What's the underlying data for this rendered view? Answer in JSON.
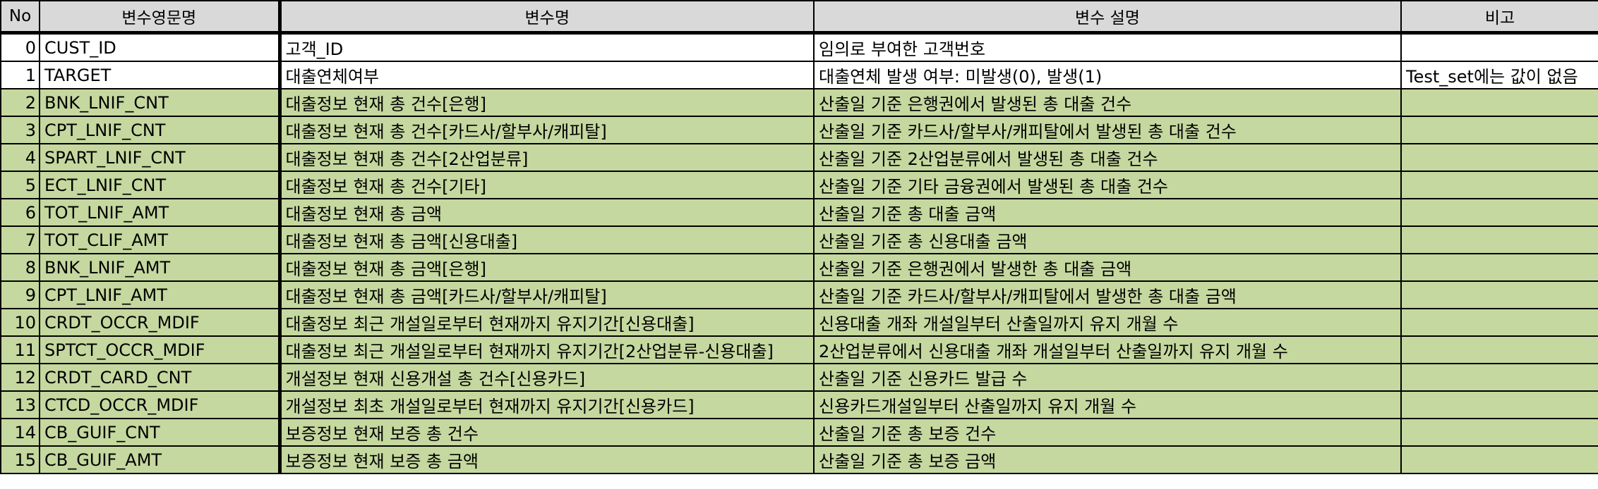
{
  "headers": [
    "No",
    "변수영문명",
    "변수명",
    "변수 설명",
    "비고"
  ],
  "rows": [
    {
      "no": "0",
      "eng": "CUST_ID",
      "name": "고객_ID",
      "desc": "임의로 부여한 고객번호",
      "note": "",
      "style": "white"
    },
    {
      "no": "1",
      "eng": "TARGET",
      "name": "대출연체여부",
      "desc": "대출연체 발생 여부: 미발생(0), 발생(1)",
      "note": "Test_set에는 값이 없음",
      "style": "white"
    },
    {
      "no": "2",
      "eng": "BNK_LNIF_CNT",
      "name": "대출정보 현재 총 건수[은행]",
      "desc": "산출일 기준 은행권에서 발생된 총 대출 건수",
      "note": "",
      "style": "green"
    },
    {
      "no": "3",
      "eng": "CPT_LNIF_CNT",
      "name": "대출정보 현재 총 건수[카드사/할부사/캐피탈]",
      "desc": "산출일 기준 카드사/할부사/캐피탈에서 발생된 총 대출 건수",
      "note": "",
      "style": "green"
    },
    {
      "no": "4",
      "eng": "SPART_LNIF_CNT",
      "name": "대출정보 현재 총 건수[2산업분류]",
      "desc": "산출일 기준 2산업분류에서 발생된 총 대출 건수",
      "note": "",
      "style": "green"
    },
    {
      "no": "5",
      "eng": "ECT_LNIF_CNT",
      "name": "대출정보 현재 총 건수[기타]",
      "desc": "산출일 기준 기타 금융권에서 발생된 총 대출 건수",
      "note": "",
      "style": "green"
    },
    {
      "no": "6",
      "eng": "TOT_LNIF_AMT",
      "name": "대출정보 현재 총 금액",
      "desc": "산출일 기준 총 대출 금액",
      "note": "",
      "style": "green"
    },
    {
      "no": "7",
      "eng": "TOT_CLIF_AMT",
      "name": "대출정보 현재 총 금액[신용대출]",
      "desc": "산출일 기준 총 신용대출 금액",
      "note": "",
      "style": "green"
    },
    {
      "no": "8",
      "eng": "BNK_LNIF_AMT",
      "name": "대출정보 현재 총 금액[은행]",
      "desc": "산출일 기준 은행권에서 발생한 총 대출 금액",
      "note": "",
      "style": "green"
    },
    {
      "no": "9",
      "eng": "CPT_LNIF_AMT",
      "name": "대출정보 현재 총 금액[카드사/할부사/캐피탈]",
      "desc": "산출일 기준  카드사/할부사/캐피탈에서 발생한 총 대출 금액",
      "note": "",
      "style": "green"
    },
    {
      "no": "10",
      "eng": "CRDT_OCCR_MDIF",
      "name": "대출정보 최근 개설일로부터 현재까지 유지기간[신용대출]",
      "desc": "신용대출 개좌 개설일부터 산출일까지 유지 개월 수",
      "note": "",
      "style": "green"
    },
    {
      "no": "11",
      "eng": "SPTCT_OCCR_MDIF",
      "name": "대출정보 최근 개설일로부터 현재까지 유지기간[2산업분류-신용대출]",
      "desc": "2산업분류에서 신용대출 개좌 개설일부터 산출일까지 유지 개월 수",
      "note": "",
      "style": "green"
    },
    {
      "no": "12",
      "eng": "CRDT_CARD_CNT",
      "name": "개설정보 현재 신용개설 총 건수[신용카드]",
      "desc": "산출일 기준 신용카드 발급 수",
      "note": "",
      "style": "green"
    },
    {
      "no": "13",
      "eng": "CTCD_OCCR_MDIF",
      "name": "개설정보 최초 개설일로부터 현재까지 유지기간[신용카드]",
      "desc": "신용카드개설일부터 산출일까지 유지 개월 수",
      "note": "",
      "style": "green"
    },
    {
      "no": "14",
      "eng": "CB_GUIF_CNT",
      "name": "보증정보 현재 보증 총 건수",
      "desc": "산출일 기준 총 보증 건수",
      "note": "",
      "style": "green"
    },
    {
      "no": "15",
      "eng": "CB_GUIF_AMT",
      "name": "보증정보 현재 보증 총 금액",
      "desc": "산출일 기준 총 보증 금액",
      "note": "",
      "style": "green"
    }
  ]
}
